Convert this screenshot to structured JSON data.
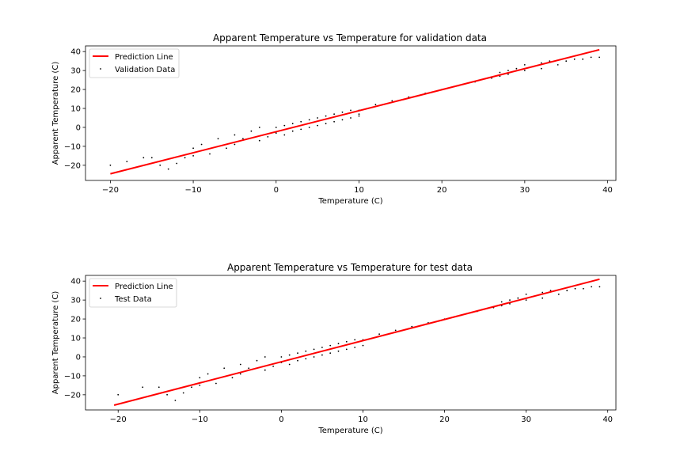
{
  "chart_data": [
    {
      "type": "scatter",
      "title": "Apparent Temperature vs Temperature for validation data",
      "xlabel": "Temperature (C)",
      "ylabel": "Apparent Temperature (C)",
      "xlim": [
        -23.0,
        41.0
      ],
      "ylim": [
        -28.0,
        43.0
      ],
      "xticks": [
        -20,
        -10,
        0,
        10,
        20,
        30,
        40
      ],
      "xtick_labels": [
        "−20",
        "−10",
        "0",
        "10",
        "20",
        "30",
        "40"
      ],
      "yticks": [
        -20,
        -10,
        0,
        10,
        20,
        30,
        40
      ],
      "ytick_labels": [
        "−20",
        "−10",
        "0",
        "10",
        "20",
        "30",
        "40"
      ],
      "grid": false,
      "legend_position": "top-left",
      "series": [
        {
          "name": "Prediction Line",
          "kind": "line",
          "color": "#ff0000",
          "x": [
            -20,
            39
          ],
          "y": [
            -24.5,
            41.0
          ]
        },
        {
          "name": "Validation Data",
          "kind": "scatter",
          "color": "#000000",
          "x": [
            -20,
            -18,
            -16,
            -15,
            -14,
            -13,
            -12,
            -11,
            -10,
            -10,
            -9,
            -8,
            -7,
            -6,
            -5,
            -5,
            -4,
            -3,
            -2,
            -2,
            -1,
            0,
            0,
            1,
            1,
            2,
            2,
            3,
            3,
            4,
            4,
            5,
            5,
            6,
            6,
            7,
            7,
            8,
            8,
            9,
            9,
            10,
            10,
            10,
            12,
            14,
            16,
            18,
            20,
            22,
            24,
            26,
            27,
            27,
            28,
            28,
            29,
            30,
            30,
            31,
            32,
            32,
            33,
            34,
            35,
            36,
            37,
            38,
            39
          ],
          "y": [
            -20,
            -18,
            -16,
            -16,
            -20,
            -22,
            -19,
            -16,
            -11,
            -15,
            -9,
            -14,
            -6,
            -11,
            -4,
            -9,
            -6,
            -2,
            -7,
            0,
            -5,
            0,
            -3,
            1,
            -4,
            2,
            -2,
            3,
            -1,
            4,
            0,
            5,
            1,
            6,
            2,
            7,
            3,
            8,
            4,
            9,
            5,
            9,
            7,
            6,
            12,
            14,
            16,
            18,
            20,
            22,
            24,
            26,
            27,
            29,
            28,
            30,
            31,
            30,
            33,
            32,
            34,
            31,
            35,
            33,
            35,
            36,
            36,
            37,
            37
          ]
        }
      ]
    },
    {
      "type": "scatter",
      "title": "Apparent Temperature vs Temperature for test data",
      "xlabel": "Temperature (C)",
      "ylabel": "Apparent Temperature (C)",
      "xlim": [
        -24.0,
        41.0
      ],
      "ylim": [
        -28.0,
        43.0
      ],
      "xticks": [
        -20,
        -10,
        0,
        10,
        20,
        30,
        40
      ],
      "xtick_labels": [
        "−20",
        "−10",
        "0",
        "10",
        "20",
        "30",
        "40"
      ],
      "yticks": [
        -20,
        -10,
        0,
        10,
        20,
        30,
        40
      ],
      "ytick_labels": [
        "−20",
        "−10",
        "0",
        "10",
        "20",
        "30",
        "40"
      ],
      "grid": false,
      "legend_position": "top-left",
      "series": [
        {
          "name": "Prediction Line",
          "kind": "line",
          "color": "#ff0000",
          "x": [
            -20.5,
            39
          ],
          "y": [
            -25.5,
            41.0
          ]
        },
        {
          "name": "Test Data",
          "kind": "scatter",
          "color": "#000000",
          "x": [
            -20,
            -17,
            -15,
            -14,
            -13,
            -12,
            -11,
            -10,
            -10,
            -9,
            -8,
            -7,
            -6,
            -5,
            -5,
            -4,
            -3,
            -2,
            -2,
            -1,
            0,
            0,
            1,
            1,
            2,
            2,
            3,
            3,
            4,
            4,
            5,
            5,
            6,
            6,
            7,
            7,
            8,
            8,
            9,
            9,
            10,
            10,
            12,
            14,
            16,
            18,
            20,
            22,
            24,
            26,
            27,
            27,
            28,
            28,
            29,
            30,
            30,
            31,
            32,
            32,
            33,
            34,
            35,
            36,
            37,
            38,
            39
          ],
          "y": [
            -20,
            -16,
            -16,
            -20,
            -23,
            -19,
            -16,
            -11,
            -15,
            -9,
            -14,
            -6,
            -11,
            -4,
            -9,
            -6,
            -2,
            -7,
            0,
            -5,
            0,
            -3,
            1,
            -4,
            2,
            -2,
            3,
            -1,
            4,
            0,
            5,
            1,
            6,
            2,
            7,
            3,
            8,
            4,
            9,
            5,
            9,
            6,
            12,
            14,
            16,
            18,
            20,
            22,
            24,
            26,
            27,
            29,
            28,
            30,
            31,
            30,
            33,
            32,
            34,
            31,
            35,
            33,
            35,
            36,
            36,
            37,
            37
          ]
        }
      ]
    }
  ]
}
